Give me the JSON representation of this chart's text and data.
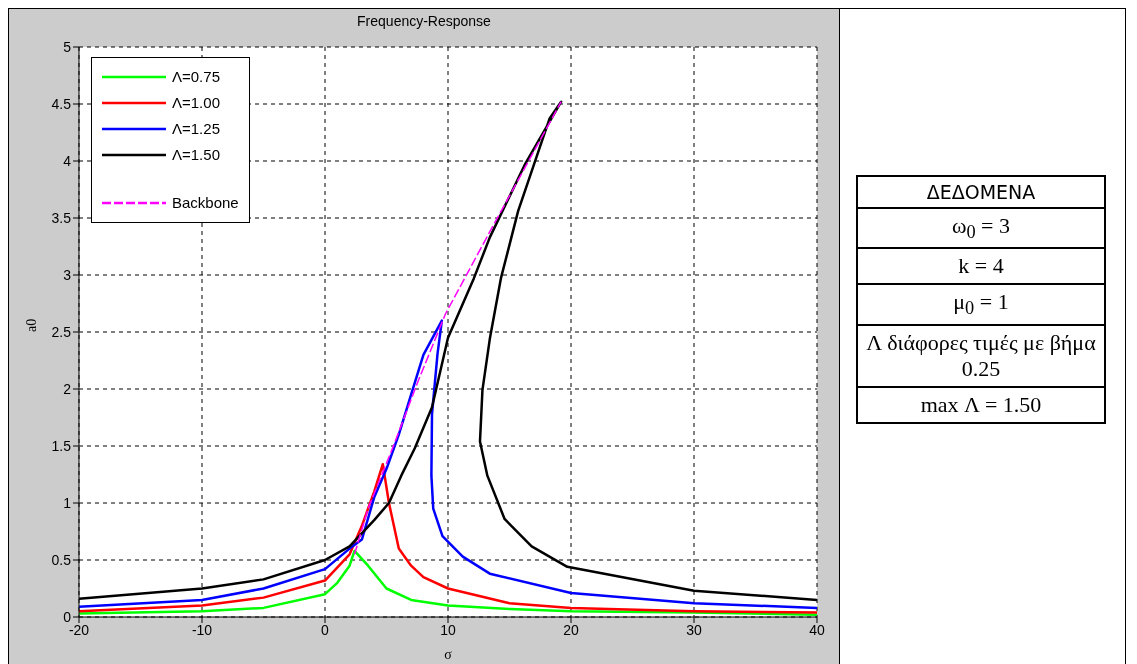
{
  "chart_data": [
    {
      "type": "line",
      "title": "Frequency-Response",
      "xlabel": "σ",
      "ylabel": "a0",
      "xlim": [
        -20,
        40
      ],
      "xticks": [
        -20,
        -10,
        0,
        10,
        20,
        30,
        40
      ],
      "ylim": [
        0,
        5
      ],
      "yticks": [
        0,
        0.5,
        1,
        1.5,
        2,
        2.5,
        3,
        3.5,
        4,
        4.5,
        5
      ],
      "grid": true,
      "legend": "top left",
      "line_style": "solid",
      "marker": "none",
      "series": [
        {
          "name": "Λ=0.75",
          "color": "#00ff00",
          "x": [
            -20,
            -10,
            -5,
            0,
            1,
            2,
            2.4,
            3.5,
            5,
            7,
            10,
            15,
            20,
            30,
            40
          ],
          "values": [
            0.03,
            0.05,
            0.08,
            0.2,
            0.3,
            0.45,
            0.58,
            0.45,
            0.25,
            0.15,
            0.1,
            0.07,
            0.05,
            0.04,
            0.02
          ]
        },
        {
          "name": "Λ=1.00",
          "color": "#ff0000",
          "x": [
            -20,
            -10,
            -5,
            0,
            2,
            3,
            4,
            4.7,
            5.2,
            6,
            7,
            8,
            10,
            15,
            20,
            30,
            40
          ],
          "values": [
            0.05,
            0.1,
            0.17,
            0.32,
            0.55,
            0.8,
            1.1,
            1.34,
            1.0,
            0.6,
            0.45,
            0.35,
            0.25,
            0.12,
            0.08,
            0.05,
            0.04
          ]
        },
        {
          "name": "Λ=1.25",
          "color": "#0000ff",
          "x": [
            -20,
            -10,
            -5,
            0,
            2,
            3,
            4,
            5,
            6,
            7,
            8,
            9.5,
            9.15,
            8.7,
            8.65,
            8.8,
            9.55,
            11.2,
            13.4,
            20,
            30,
            40
          ],
          "values": [
            0.09,
            0.15,
            0.25,
            0.42,
            0.6,
            0.68,
            1.05,
            1.3,
            1.6,
            1.95,
            2.3,
            2.6,
            2.31,
            1.78,
            1.24,
            0.95,
            0.71,
            0.53,
            0.38,
            0.21,
            0.12,
            0.08
          ]
        },
        {
          "name": "Λ=1.50",
          "color": "#000000",
          "x": [
            -20,
            -10,
            -5,
            0,
            2,
            4,
            5.2,
            6.2,
            7.3,
            8.7,
            10,
            12.1,
            13.4,
            16.3,
            19.2,
            18.25,
            15.7,
            14.3,
            13.4,
            12.8,
            12.6,
            13.2,
            14.6,
            16.8,
            19.7,
            30,
            40
          ],
          "values": [
            0.16,
            0.25,
            0.33,
            0.5,
            0.62,
            0.85,
            1.0,
            1.24,
            1.48,
            1.84,
            2.45,
            2.97,
            3.33,
            3.98,
            4.52,
            4.37,
            3.56,
            2.97,
            2.44,
            1.99,
            1.54,
            1.24,
            0.86,
            0.62,
            0.44,
            0.23,
            0.15
          ]
        },
        {
          "name": "Backbone",
          "color": "#ff00ff",
          "line_style": "dashed",
          "x": [
            2.4,
            3.5,
            5.6,
            7.5,
            9.8,
            13.4,
            16.3,
            19.2
          ],
          "values": [
            0.55,
            0.95,
            1.51,
            2.05,
            2.66,
            3.38,
            3.95,
            4.52
          ]
        }
      ]
    },
    {
      "type": "other",
      "title": "ΔΕΔΟΜΕΝΑ",
      "annotations": [
        "ω$_{0}$ = 3",
        "k = 4",
        "μ$_{0}$ = 1",
        "Λ διάφορες τιμές με βήμα 0.25",
        "max Λ = 1.50"
      ]
    }
  ]
}
